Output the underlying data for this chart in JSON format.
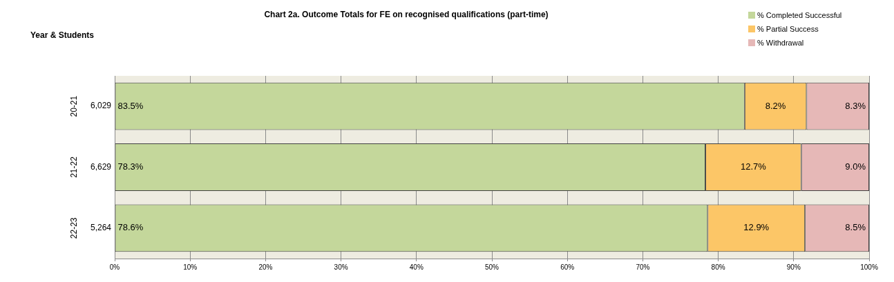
{
  "chart_data": {
    "type": "bar",
    "orientation": "horizontal",
    "stacked": true,
    "title": "Chart 2a. Outcome Totals for FE on recognised qualifications (part-time)",
    "ylabel": "Year & Students",
    "categories": [
      "20-21",
      "21-22",
      "22-23"
    ],
    "annotations": [
      "6,029",
      "6,629",
      "5,264"
    ],
    "series": [
      {
        "name": "% Completed Successful",
        "color": "#c4d79b",
        "values": [
          83.5,
          78.3,
          78.6
        ],
        "value_labels": [
          "83.5%",
          "78.3%",
          "78.6%"
        ]
      },
      {
        "name": "% Partial Success",
        "color": "#fcc667",
        "values": [
          8.2,
          12.7,
          12.9
        ],
        "value_labels": [
          "8.2%",
          "12.7%",
          "12.9%"
        ]
      },
      {
        "name": "% Withdrawal",
        "color": "#e6b8b7",
        "values": [
          8.3,
          9.0,
          8.5
        ],
        "value_labels": [
          "8.3%",
          "9.0%",
          "8.5%"
        ]
      }
    ],
    "xlim": [
      0,
      100
    ],
    "xticks": [
      {
        "value": 0,
        "label": "0%"
      },
      {
        "value": 10,
        "label": "10%"
      },
      {
        "value": 20,
        "label": "20%"
      },
      {
        "value": 30,
        "label": "30%"
      },
      {
        "value": 40,
        "label": "40%"
      },
      {
        "value": 50,
        "label": "50%"
      },
      {
        "value": 60,
        "label": "60%"
      },
      {
        "value": 70,
        "label": "70%"
      },
      {
        "value": 80,
        "label": "80%"
      },
      {
        "value": 90,
        "label": "90%"
      },
      {
        "value": 100,
        "label": "100%"
      }
    ],
    "grid": "x",
    "legend": "top right"
  }
}
